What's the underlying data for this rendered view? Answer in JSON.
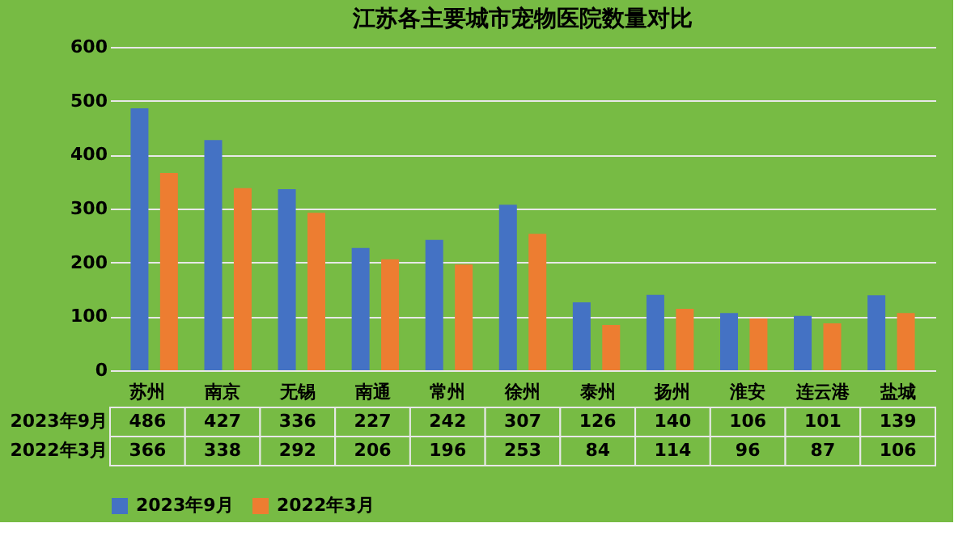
{
  "chart_data": {
    "type": "bar",
    "title": "江苏各主要城市宠物医院数量对比",
    "categories": [
      "苏州",
      "南京",
      "无锡",
      "南通",
      "常州",
      "徐州",
      "泰州",
      "扬州",
      "淮安",
      "连云港",
      "盐城"
    ],
    "series": [
      {
        "name": "2023年9月",
        "color": "#4472c4",
        "values": [
          486,
          427,
          336,
          227,
          242,
          307,
          126,
          140,
          106,
          101,
          139
        ]
      },
      {
        "name": "2022年3月",
        "color": "#ed7d31",
        "values": [
          366,
          338,
          292,
          206,
          196,
          253,
          84,
          114,
          96,
          87,
          106
        ]
      }
    ],
    "ylim": [
      0,
      600
    ],
    "yticks": [
      0,
      100,
      200,
      300,
      400,
      500,
      600
    ],
    "grid": "y",
    "legend": "bottom",
    "data_labels": true
  }
}
